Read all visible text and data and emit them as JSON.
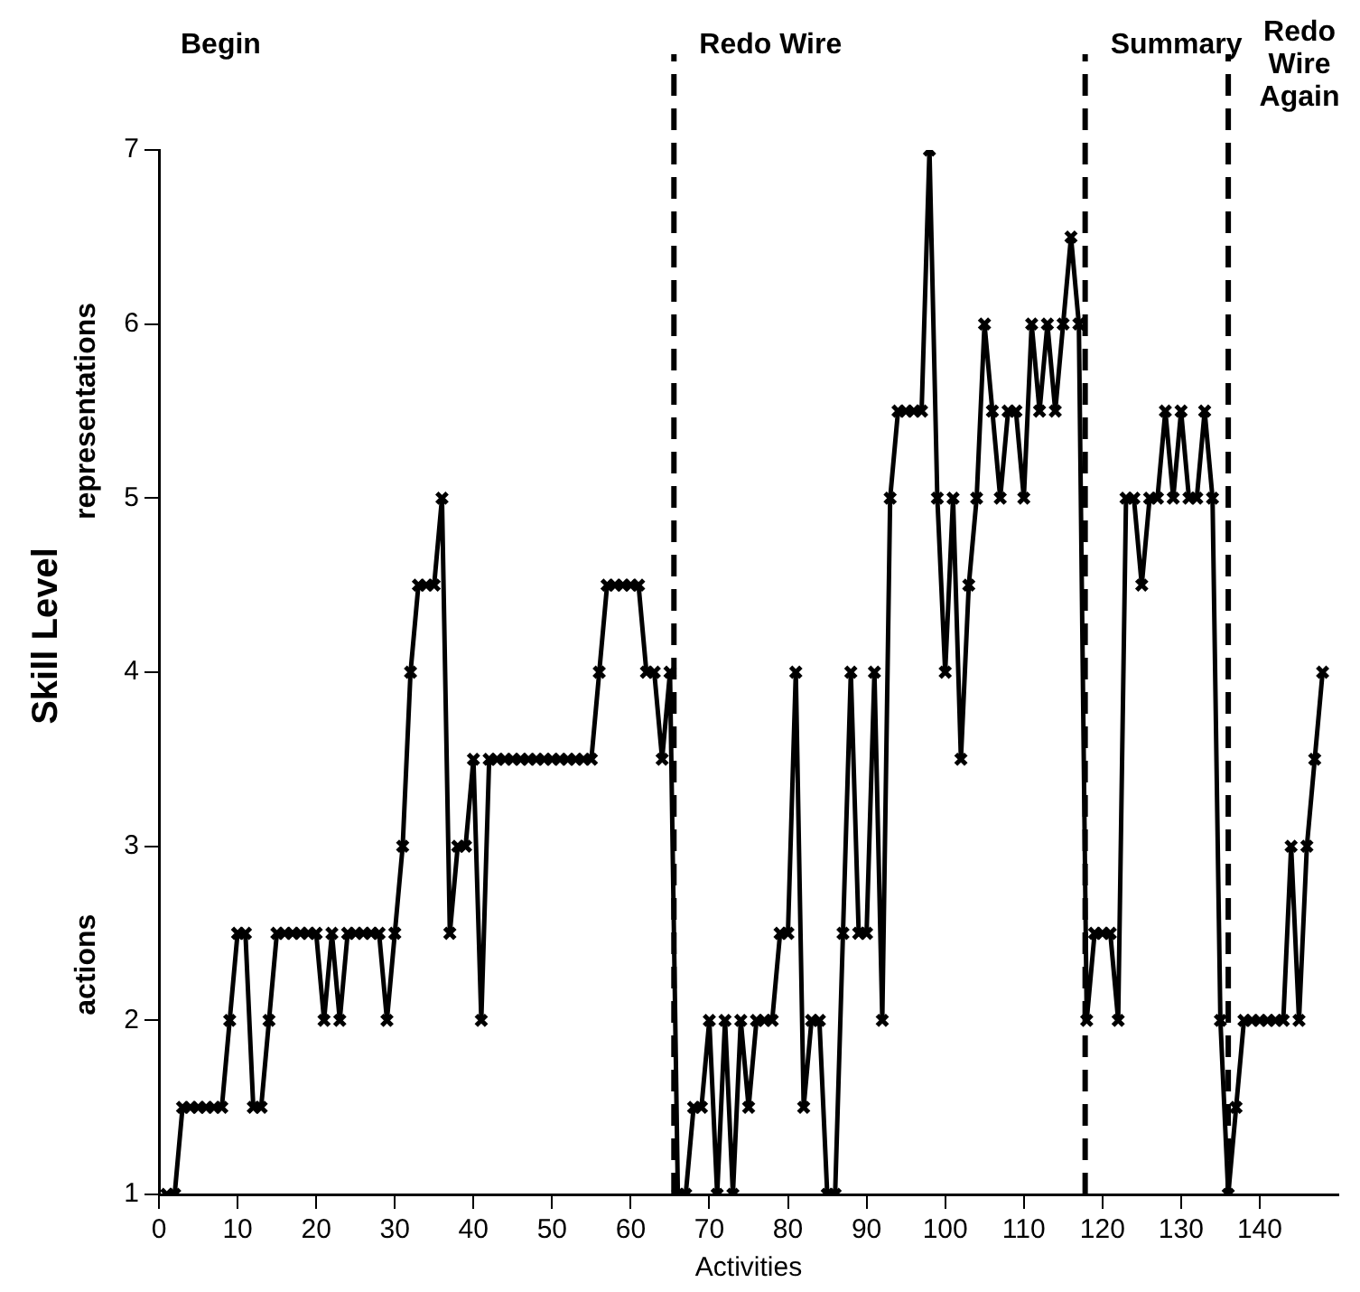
{
  "chart_data": {
    "type": "line",
    "xlabel": "Activities",
    "ylabel": "Skill Level",
    "marker": "cross",
    "line_style": "solid",
    "grid": false,
    "legend": false,
    "xlim": [
      0,
      150
    ],
    "xticks": [
      0,
      10,
      20,
      30,
      40,
      50,
      60,
      70,
      80,
      90,
      100,
      110,
      120,
      130,
      140
    ],
    "ylim": [
      1,
      7
    ],
    "yticks": [
      1,
      2,
      3,
      4,
      5,
      6,
      7
    ],
    "ref_lines": [
      {
        "axis": "x",
        "value": 65.5,
        "label": "Redo Wire",
        "line_style": "dashed",
        "color": "#000000"
      },
      {
        "axis": "x",
        "value": 117.8,
        "label": "Summary",
        "line_style": "dashed",
        "color": "#000000"
      },
      {
        "axis": "x",
        "value": 136,
        "label": "Redo Wire Again",
        "line_style": "dashed",
        "color": "#000000"
      }
    ],
    "annotations": [
      "Begin",
      "representations",
      "actions"
    ],
    "series": [
      {
        "color": "#000000",
        "x": [
          1,
          2,
          3,
          4,
          5,
          6,
          7,
          8,
          9,
          10,
          11,
          12,
          13,
          14,
          15,
          16,
          17,
          18,
          19,
          20,
          21,
          22,
          23,
          24,
          25,
          26,
          27,
          28,
          29,
          30,
          31,
          32,
          33,
          34,
          35,
          36,
          37,
          38,
          39,
          40,
          41,
          42,
          43,
          44,
          45,
          46,
          47,
          48,
          49,
          50,
          51,
          52,
          53,
          54,
          55,
          56,
          57,
          58,
          59,
          60,
          61,
          62,
          63,
          64,
          65,
          66,
          67,
          68,
          69,
          70,
          71,
          72,
          73,
          74,
          75,
          76,
          77,
          78,
          79,
          80,
          81,
          82,
          83,
          84,
          85,
          86,
          87,
          88,
          89,
          90,
          91,
          92,
          93,
          94,
          95,
          96,
          97,
          98,
          99,
          100,
          101,
          102,
          103,
          104,
          105,
          106,
          107,
          108,
          109,
          110,
          111,
          112,
          113,
          114,
          115,
          116,
          117,
          118,
          119,
          120,
          121,
          122,
          123,
          124,
          125,
          126,
          127,
          128,
          129,
          130,
          131,
          132,
          133,
          134,
          135,
          136,
          137,
          138,
          139,
          140,
          141,
          142,
          143,
          144,
          145,
          146,
          147,
          148
        ],
        "values": [
          1,
          1,
          1.5,
          1.5,
          1.5,
          1.5,
          1.5,
          1.5,
          2,
          2.5,
          2.5,
          1.5,
          1.5,
          2,
          2.5,
          2.5,
          2.5,
          2.5,
          2.5,
          2.5,
          2,
          2.5,
          2,
          2.5,
          2.5,
          2.5,
          2.5,
          2.5,
          2,
          2.5,
          3,
          4,
          4.5,
          4.5,
          4.5,
          5,
          2.5,
          3,
          3,
          3.5,
          2,
          3.5,
          3.5,
          3.5,
          3.5,
          3.5,
          3.5,
          3.5,
          3.5,
          3.5,
          3.5,
          3.5,
          3.5,
          3.5,
          3.5,
          4,
          4.5,
          4.5,
          4.5,
          4.5,
          4.5,
          4,
          4,
          3.5,
          4,
          1,
          1,
          1.5,
          1.5,
          2,
          1,
          2,
          1,
          2,
          1.5,
          2,
          2,
          2,
          2.5,
          2.5,
          4,
          1.5,
          2,
          2,
          1,
          1,
          2.5,
          4,
          2.5,
          2.5,
          4,
          2,
          5,
          5.5,
          5.5,
          5.5,
          5.5,
          7,
          5,
          4,
          5,
          3.5,
          4.5,
          5,
          6,
          5.5,
          5,
          5.5,
          5.5,
          5,
          6,
          5.5,
          6,
          5.5,
          6,
          6.5,
          6,
          2,
          2.5,
          2.5,
          2.5,
          2,
          5,
          5,
          4.5,
          5,
          5,
          5.5,
          5,
          5.5,
          5,
          5,
          5.5,
          5,
          2,
          1,
          1.5,
          2,
          2,
          2,
          2,
          2,
          2,
          3,
          2,
          3,
          3.5,
          4
        ]
      }
    ]
  }
}
